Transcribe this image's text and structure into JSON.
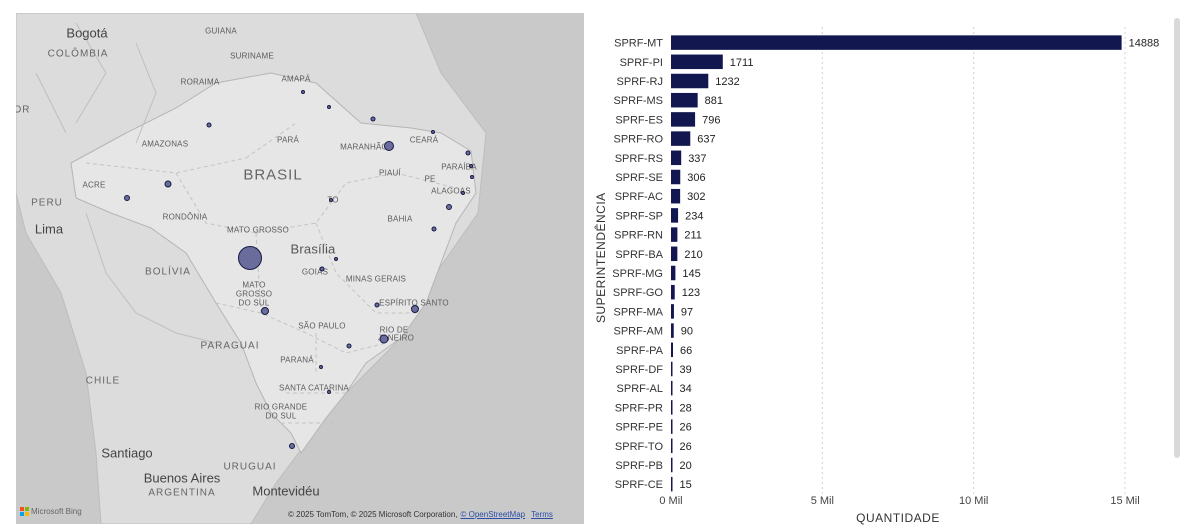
{
  "map": {
    "labels": {
      "bogota": "Bogotá",
      "colombia": "COLÔMBIA",
      "guiana": "GUIANA",
      "suriname": "SURINAME",
      "roraima": "RORAIMA",
      "amapa": "AMAPÁ",
      "or": "OR",
      "amazonas": "AMAZONAS",
      "para": "PARÁ",
      "maranhao": "MARANHÃO",
      "ceara": "CEARÁ",
      "brasil": "BRASIL",
      "piaui": "PIAUÍ",
      "pe": "PE",
      "paraiba": "PARAÍBA",
      "alagoas": "ALAGOAS",
      "acre": "ACRE",
      "peru": "PERU",
      "rondonia": "RONDÔNIA",
      "to": "TO",
      "bahia": "BAHIA",
      "lima": "Lima",
      "mato_grosso": "MATO GROSSO",
      "brasilia": "Brasília",
      "bolivia": "BOLÍVIA",
      "goias": "GOIÁS",
      "minas_gerais": "MINAS GERAIS",
      "ms1": "MATO",
      "ms2": "GROSSO",
      "ms3": "DO SUL",
      "espirito_santo": "ESPÍRITO SANTO",
      "sao_paulo": "SÃO PAULO",
      "rj1": "RIO DE",
      "rj2": "JANEIRO",
      "paraguai": "PARAGUAI",
      "parana": "PARANÁ",
      "chile": "CHILE",
      "santa_catarina": "SANTA CATARINA",
      "rs1": "RIO GRANDE",
      "rs2": "DO SUL",
      "santiago": "Santiago",
      "uruguai": "URUGUAI",
      "buenos_aires": "Buenos Aires",
      "argentina": "ARGENTINA",
      "montevideu": "Montevidéu"
    },
    "bing_label": "Microsoft Bing",
    "copyright_text": "© 2025 TomTom, © 2025 Microsoft Corporation,",
    "osm_link": "© OpenStreetMap",
    "terms_link": "Terms",
    "colors": {
      "bubble_fill": "#6a6d9c",
      "bubble_border": "#161a44",
      "land": "#e4e4e4",
      "foreign": "#dcdcdc",
      "water": "#c9c9c9"
    }
  },
  "chart_data": {
    "type": "bar",
    "orientation": "horizontal",
    "categories": [
      "SPRF-MT",
      "SPRF-PI",
      "SPRF-RJ",
      "SPRF-MS",
      "SPRF-ES",
      "SPRF-RO",
      "SPRF-RS",
      "SPRF-SE",
      "SPRF-AC",
      "SPRF-SP",
      "SPRF-RN",
      "SPRF-BA",
      "SPRF-MG",
      "SPRF-GO",
      "SPRF-MA",
      "SPRF-AM",
      "SPRF-PA",
      "SPRF-DF",
      "SPRF-AL",
      "SPRF-PR",
      "SPRF-PE",
      "SPRF-TO",
      "SPRF-PB",
      "SPRF-CE"
    ],
    "values": [
      14888,
      1711,
      1232,
      881,
      796,
      637,
      337,
      306,
      302,
      234,
      211,
      210,
      145,
      123,
      97,
      90,
      66,
      39,
      34,
      28,
      26,
      26,
      20,
      15
    ],
    "xlabel": "QUANTIDADE",
    "ylabel": "SUPERINTENDÊNCIA",
    "xlim": [
      0,
      15000
    ],
    "xticks": [
      0,
      5000,
      10000,
      15000
    ],
    "xtick_labels": [
      "0 Mil",
      "5 Mil",
      "10 Mil",
      "15 Mil"
    ],
    "grid": "vertical dashed",
    "bar_color": "#12184f"
  }
}
